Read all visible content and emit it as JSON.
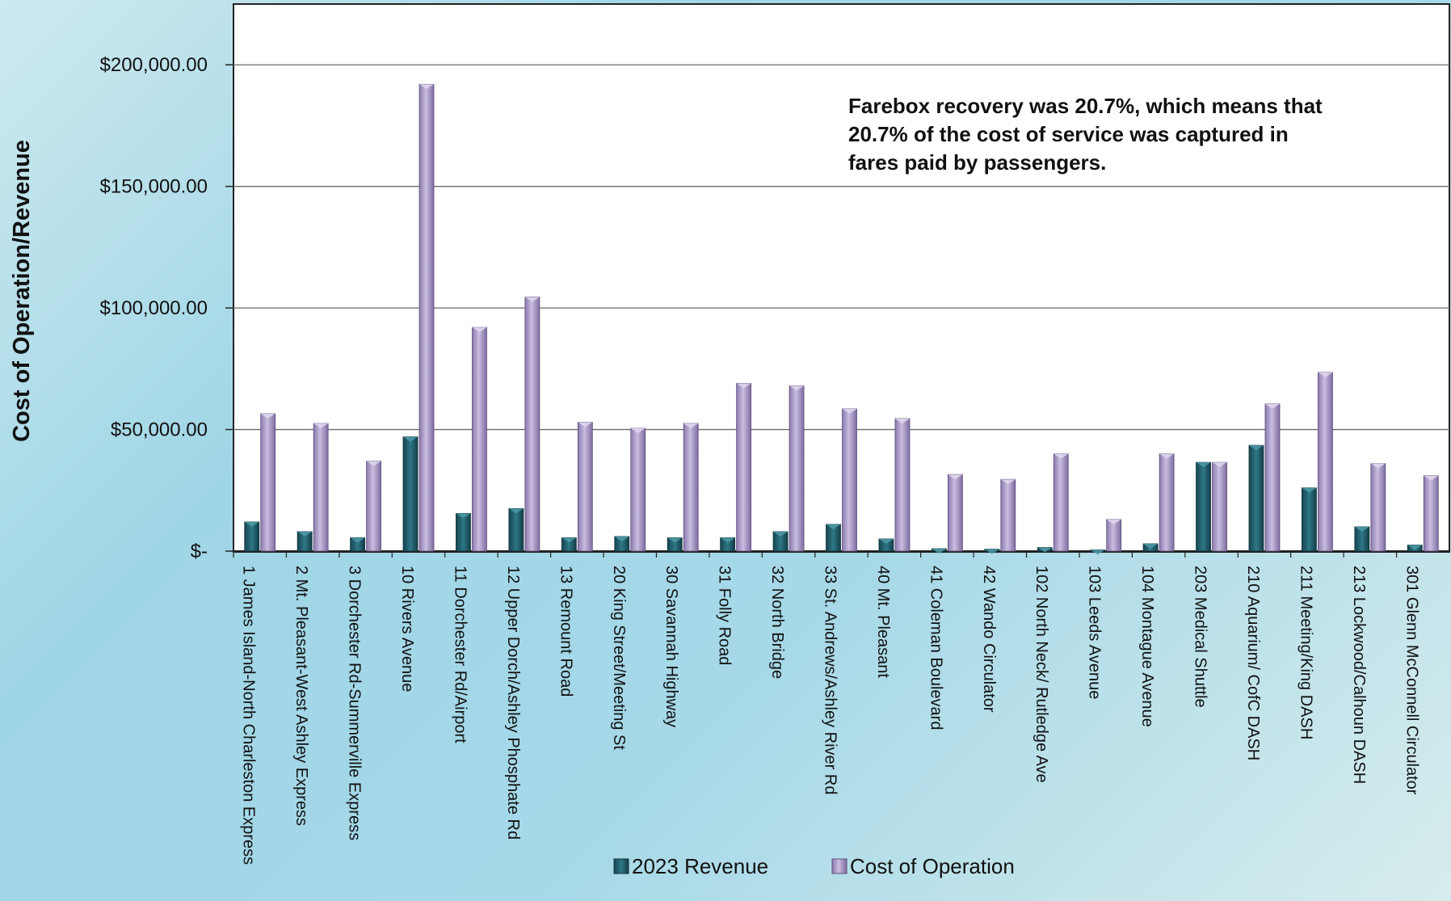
{
  "chart_data": {
    "type": "bar",
    "ylabel": "Cost of Operation/Revenue",
    "xlabel": "",
    "title": "",
    "ylim": [
      0,
      225000
    ],
    "yticks": [
      0,
      50000,
      100000,
      150000,
      200000
    ],
    "ytick_labels": [
      "$-",
      "$50,000.00",
      "$100,000.00",
      "$150,000.00",
      "$200,000.00"
    ],
    "grid": true,
    "legend_position": "bottom",
    "annotation": "Farebox recovery was 20.7%, which means that 20.7% of the cost of service was captured in fares paid by passengers.",
    "annotation_lines": [
      "Farebox recovery was 20.7%, which means that",
      "20.7% of the cost of service was captured in",
      "fares paid by passengers."
    ],
    "categories": [
      "1 James Island-North Charleston Express",
      "2 Mt. Pleasant-West Ashley Express",
      "3 Dorchester Rd-Summerville Express",
      "10 Rivers Avenue",
      "11 Dorchester Rd/Airport",
      "12 Upper Dorch/Ashley Phosphate Rd",
      "13 Remount Road",
      "20 King Street/Meeting St",
      "30 Savannah Highway",
      "31 Folly Road",
      "32 North Bridge",
      "33 St. Andrews/Ashley River Rd",
      "40 Mt. Pleasant",
      "41 Coleman Boulevard",
      "42 Wando Circulator",
      "102 North Neck/ Rutledge Ave",
      "103 Leeds Avenue",
      "104 Montague Avenue",
      "203 Medical Shuttle",
      "210 Aquarium/ CofC DASH",
      "211 Meeting/King DASH",
      "213 Lockwood/Calhoun DASH",
      "301 Glenn McConnell Circulator"
    ],
    "series": [
      {
        "name": "2023 Revenue",
        "color": "#1f5b68",
        "values": [
          12000,
          8000,
          5500,
          47000,
          15500,
          17500,
          5500,
          6000,
          5500,
          5500,
          8000,
          11000,
          5000,
          1000,
          800,
          1500,
          500,
          3000,
          36500,
          43500,
          26000,
          10000,
          2500
        ]
      },
      {
        "name": "Cost of Operation",
        "color": "#a898c4",
        "values": [
          56500,
          52500,
          37000,
          192000,
          92000,
          104500,
          53000,
          50500,
          52500,
          69000,
          68000,
          58500,
          54500,
          31500,
          29500,
          40000,
          13000,
          40000,
          36500,
          60500,
          73500,
          36000,
          31000
        ]
      }
    ]
  }
}
